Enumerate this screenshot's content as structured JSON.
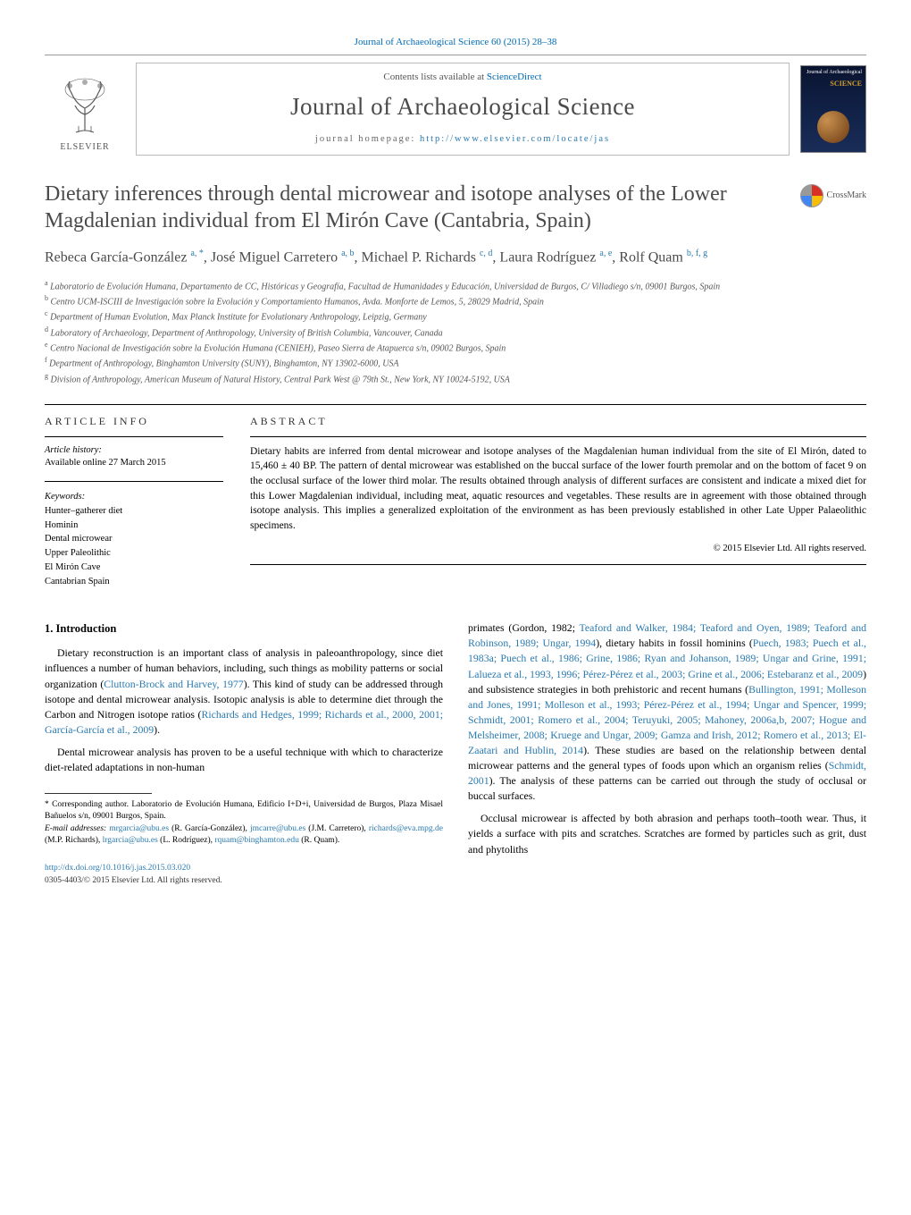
{
  "header": {
    "citation": "Journal of Archaeological Science 60 (2015) 28–38"
  },
  "masthead": {
    "publisher": "ELSEVIER",
    "contents_prefix": "Contents lists available at ",
    "contents_link": "ScienceDirect",
    "journal_name": "Journal of Archaeological Science",
    "homepage_prefix": "journal homepage: ",
    "homepage_url": "http://www.elsevier.com/locate/jas",
    "cover_top": "Journal of Archaeological",
    "cover_science": "SCIENCE"
  },
  "crossmark": "CrossMark",
  "title": "Dietary inferences through dental microwear and isotope analyses of the Lower Magdalenian individual from El Mirón Cave (Cantabria, Spain)",
  "authors_html": "Rebeca García-González <sup><a>a, *</a></sup>, José Miguel Carretero <sup><a>a, b</a></sup>, Michael P. Richards <sup><a>c, d</a></sup>, Laura Rodríguez <sup><a>a, e</a></sup>, Rolf Quam <sup><a>b, f, g</a></sup>",
  "affiliations": [
    {
      "sup": "a",
      "text": "Laboratorio de Evolución Humana, Departamento de CC, Históricas y Geografía, Facultad de Humanidades y Educación, Universidad de Burgos, C/ Villadiego s/n, 09001 Burgos, Spain"
    },
    {
      "sup": "b",
      "text": "Centro UCM-ISCIII de Investigación sobre la Evolución y Comportamiento Humanos, Avda. Monforte de Lemos, 5, 28029 Madrid, Spain"
    },
    {
      "sup": "c",
      "text": "Department of Human Evolution, Max Planck Institute for Evolutionary Anthropology, Leipzig, Germany"
    },
    {
      "sup": "d",
      "text": "Laboratory of Archaeology, Department of Anthropology, University of British Columbia, Vancouver, Canada"
    },
    {
      "sup": "e",
      "text": "Centro Nacional de Investigación sobre la Evolución Humana (CENIEH), Paseo Sierra de Atapuerca s/n, 09002 Burgos, Spain"
    },
    {
      "sup": "f",
      "text": "Department of Anthropology, Binghamton University (SUNY), Binghamton, NY 13902-6000, USA"
    },
    {
      "sup": "g",
      "text": "Division of Anthropology, American Museum of Natural History, Central Park West @ 79th St., New York, NY 10024-5192, USA"
    }
  ],
  "article_info": {
    "heading": "ARTICLE INFO",
    "history_label": "Article history:",
    "history_text": "Available online 27 March 2015",
    "keywords_label": "Keywords:",
    "keywords": [
      "Hunter–gatherer diet",
      "Hominin",
      "Dental microwear",
      "Upper Paleolithic",
      "El Mirón Cave",
      "Cantabrian Spain"
    ]
  },
  "abstract": {
    "heading": "ABSTRACT",
    "text": "Dietary habits are inferred from dental microwear and isotope analyses of the Magdalenian human individual from the site of El Mirón, dated to 15,460 ± 40 BP. The pattern of dental microwear was established on the buccal surface of the lower fourth premolar and on the bottom of facet 9 on the occlusal surface of the lower third molar. The results obtained through analysis of different surfaces are consistent and indicate a mixed diet for this Lower Magdalenian individual, including meat, aquatic resources and vegetables. These results are in agreement with those obtained through isotope analysis. This implies a generalized exploitation of the environment as has been previously established in other Late Upper Palaeolithic specimens.",
    "copyright": "© 2015 Elsevier Ltd. All rights reserved."
  },
  "section1": {
    "heading": "1. Introduction",
    "p1": "Dietary reconstruction is an important class of analysis in paleoanthropology, since diet influences a number of human behaviors, including, such things as mobility patterns or social organization (",
    "p1_ref1": "Clutton-Brock and Harvey, 1977",
    "p1_cont": "). This kind of study can be addressed through isotope and dental microwear analysis. Isotopic analysis is able to determine diet through the Carbon and Nitrogen isotope ratios (",
    "p1_ref2": "Richards and Hedges, 1999; Richards et al., 2000, 2001; García-García et al., 2009",
    "p1_end": ").",
    "p2": "Dental microwear analysis has proven to be a useful technique with which to characterize diet-related adaptations in non-human",
    "col2_p1a": "primates (Gordon, 1982; ",
    "col2_ref1": "Teaford and Walker, 1984; Teaford and Oyen, 1989; Teaford and Robinson, 1989; Ungar, 1994",
    "col2_p1b": "), dietary habits in fossil hominins (",
    "col2_ref2": "Puech, 1983; Puech et al., 1983a; Puech et al., 1986; Grine, 1986; Ryan and Johanson, 1989; Ungar and Grine, 1991; Lalueza et al., 1993, 1996; Pérez-Pérez et al., 2003; Grine et al., 2006; Estebaranz et al., 2009",
    "col2_p1c": ") and subsistence strategies in both prehistoric and recent humans (",
    "col2_ref3": "Bullington, 1991; Molleson and Jones, 1991; Molleson et al., 1993; Pérez-Pérez et al., 1994; Ungar and Spencer, 1999; Schmidt, 2001; Romero et al., 2004; Teruyuki, 2005; Mahoney, 2006a,b, 2007; Hogue and Melsheimer, 2008; Kruege and Ungar, 2009; Gamza and Irish, 2012; Romero et al., 2013; El-Zaatari and Hublin, 2014",
    "col2_p1d": "). These studies are based on the relationship between dental microwear patterns and the general types of foods upon which an organism relies (",
    "col2_ref4": "Schmidt, 2001",
    "col2_p1e": "). The analysis of these patterns can be carried out through the study of occlusal or buccal surfaces.",
    "col2_p2": "Occlusal microwear is affected by both abrasion and perhaps tooth–tooth wear. Thus, it yields a surface with pits and scratches. Scratches are formed by particles such as grit, dust and phytoliths"
  },
  "footnotes": {
    "corr": "* Corresponding author. Laboratorio de Evolución Humana, Edificio I+D+i, Universidad de Burgos, Plaza Misael Bañuelos s/n, 09001 Burgos, Spain.",
    "emails_label": "E-mail addresses: ",
    "e1": "mrgarcia@ubu.es",
    "n1": " (R. García-González), ",
    "e2": "jmcarre@ubu.es",
    "n2": " (J.M. Carretero), ",
    "e3": "richards@eva.mpg.de",
    "n3": " (M.P. Richards), ",
    "e4": "lrgarcia@ubu.es",
    "n4": " (L. Rodríguez), ",
    "e5": "rquam@binghamton.edu",
    "n5": " (R. Quam)."
  },
  "footer": {
    "doi": "http://dx.doi.org/10.1016/j.jas.2015.03.020",
    "issn_line": "0305-4403/© 2015 Elsevier Ltd. All rights reserved."
  },
  "colors": {
    "link": "#2a7ab0",
    "heading_gray": "#4a4a4a"
  }
}
